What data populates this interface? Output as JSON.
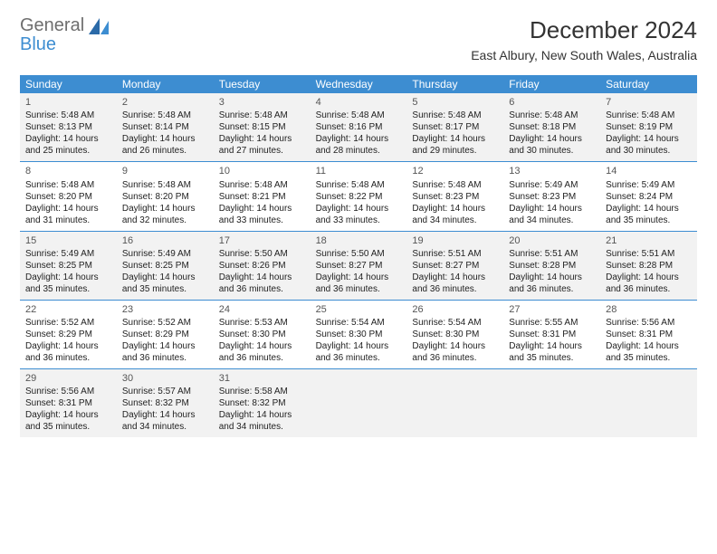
{
  "brand": {
    "line1": "General",
    "line2": "Blue"
  },
  "title": "December 2024",
  "subtitle": "East Albury, New South Wales, Australia",
  "colors": {
    "accent": "#3d8dd1",
    "shade": "#f2f2f2",
    "logo_gray": "#6e6e6e",
    "logo_blue": "#3d8dd1",
    "text": "#333333",
    "background": "#ffffff"
  },
  "typography": {
    "title_fontsize": 26,
    "subtitle_fontsize": 14,
    "dayhead_fontsize": 12,
    "cell_fontsize": 10,
    "logo_fontsize": 20
  },
  "columns": [
    "Sunday",
    "Monday",
    "Tuesday",
    "Wednesday",
    "Thursday",
    "Friday",
    "Saturday"
  ],
  "weeks": [
    {
      "shaded": true,
      "days": [
        {
          "n": "1",
          "sr": "5:48 AM",
          "ss": "8:13 PM",
          "dl": "Daylight: 14 hours and 25 minutes."
        },
        {
          "n": "2",
          "sr": "5:48 AM",
          "ss": "8:14 PM",
          "dl": "Daylight: 14 hours and 26 minutes."
        },
        {
          "n": "3",
          "sr": "5:48 AM",
          "ss": "8:15 PM",
          "dl": "Daylight: 14 hours and 27 minutes."
        },
        {
          "n": "4",
          "sr": "5:48 AM",
          "ss": "8:16 PM",
          "dl": "Daylight: 14 hours and 28 minutes."
        },
        {
          "n": "5",
          "sr": "5:48 AM",
          "ss": "8:17 PM",
          "dl": "Daylight: 14 hours and 29 minutes."
        },
        {
          "n": "6",
          "sr": "5:48 AM",
          "ss": "8:18 PM",
          "dl": "Daylight: 14 hours and 30 minutes."
        },
        {
          "n": "7",
          "sr": "5:48 AM",
          "ss": "8:19 PM",
          "dl": "Daylight: 14 hours and 30 minutes."
        }
      ]
    },
    {
      "shaded": false,
      "days": [
        {
          "n": "8",
          "sr": "5:48 AM",
          "ss": "8:20 PM",
          "dl": "Daylight: 14 hours and 31 minutes."
        },
        {
          "n": "9",
          "sr": "5:48 AM",
          "ss": "8:20 PM",
          "dl": "Daylight: 14 hours and 32 minutes."
        },
        {
          "n": "10",
          "sr": "5:48 AM",
          "ss": "8:21 PM",
          "dl": "Daylight: 14 hours and 33 minutes."
        },
        {
          "n": "11",
          "sr": "5:48 AM",
          "ss": "8:22 PM",
          "dl": "Daylight: 14 hours and 33 minutes."
        },
        {
          "n": "12",
          "sr": "5:48 AM",
          "ss": "8:23 PM",
          "dl": "Daylight: 14 hours and 34 minutes."
        },
        {
          "n": "13",
          "sr": "5:49 AM",
          "ss": "8:23 PM",
          "dl": "Daylight: 14 hours and 34 minutes."
        },
        {
          "n": "14",
          "sr": "5:49 AM",
          "ss": "8:24 PM",
          "dl": "Daylight: 14 hours and 35 minutes."
        }
      ]
    },
    {
      "shaded": true,
      "days": [
        {
          "n": "15",
          "sr": "5:49 AM",
          "ss": "8:25 PM",
          "dl": "Daylight: 14 hours and 35 minutes."
        },
        {
          "n": "16",
          "sr": "5:49 AM",
          "ss": "8:25 PM",
          "dl": "Daylight: 14 hours and 35 minutes."
        },
        {
          "n": "17",
          "sr": "5:50 AM",
          "ss": "8:26 PM",
          "dl": "Daylight: 14 hours and 36 minutes."
        },
        {
          "n": "18",
          "sr": "5:50 AM",
          "ss": "8:27 PM",
          "dl": "Daylight: 14 hours and 36 minutes."
        },
        {
          "n": "19",
          "sr": "5:51 AM",
          "ss": "8:27 PM",
          "dl": "Daylight: 14 hours and 36 minutes."
        },
        {
          "n": "20",
          "sr": "5:51 AM",
          "ss": "8:28 PM",
          "dl": "Daylight: 14 hours and 36 minutes."
        },
        {
          "n": "21",
          "sr": "5:51 AM",
          "ss": "8:28 PM",
          "dl": "Daylight: 14 hours and 36 minutes."
        }
      ]
    },
    {
      "shaded": false,
      "days": [
        {
          "n": "22",
          "sr": "5:52 AM",
          "ss": "8:29 PM",
          "dl": "Daylight: 14 hours and 36 minutes."
        },
        {
          "n": "23",
          "sr": "5:52 AM",
          "ss": "8:29 PM",
          "dl": "Daylight: 14 hours and 36 minutes."
        },
        {
          "n": "24",
          "sr": "5:53 AM",
          "ss": "8:30 PM",
          "dl": "Daylight: 14 hours and 36 minutes."
        },
        {
          "n": "25",
          "sr": "5:54 AM",
          "ss": "8:30 PM",
          "dl": "Daylight: 14 hours and 36 minutes."
        },
        {
          "n": "26",
          "sr": "5:54 AM",
          "ss": "8:30 PM",
          "dl": "Daylight: 14 hours and 36 minutes."
        },
        {
          "n": "27",
          "sr": "5:55 AM",
          "ss": "8:31 PM",
          "dl": "Daylight: 14 hours and 35 minutes."
        },
        {
          "n": "28",
          "sr": "5:56 AM",
          "ss": "8:31 PM",
          "dl": "Daylight: 14 hours and 35 minutes."
        }
      ]
    },
    {
      "shaded": true,
      "days": [
        {
          "n": "29",
          "sr": "5:56 AM",
          "ss": "8:31 PM",
          "dl": "Daylight: 14 hours and 35 minutes."
        },
        {
          "n": "30",
          "sr": "5:57 AM",
          "ss": "8:32 PM",
          "dl": "Daylight: 14 hours and 34 minutes."
        },
        {
          "n": "31",
          "sr": "5:58 AM",
          "ss": "8:32 PM",
          "dl": "Daylight: 14 hours and 34 minutes."
        },
        null,
        null,
        null,
        null
      ]
    }
  ],
  "labels": {
    "sunrise": "Sunrise: ",
    "sunset": "Sunset: "
  }
}
